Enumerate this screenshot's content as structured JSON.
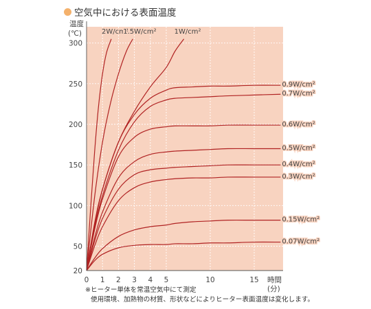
{
  "header": {
    "title": "空気中における表面温度",
    "bullet_color": "#f4b16c"
  },
  "notes": {
    "line1": "※ヒーター単体を常温空気中にて測定",
    "line2": "使用環境、加熱物の材質、形状などによりヒーター表面温度は変化します。"
  },
  "chart_data": {
    "type": "line",
    "title": "空気中における表面温度",
    "ylabel_line1": "温度",
    "ylabel_line2": "(℃)",
    "xlabel_line1": "時間",
    "xlabel_line2": "(分)",
    "xlim": [
      0,
      19
    ],
    "ylim": [
      20,
      320
    ],
    "x_ticks": [
      0,
      1,
      2,
      3,
      4,
      5,
      10,
      15
    ],
    "y_ticks": [
      20,
      50,
      100,
      150,
      200,
      250,
      300
    ],
    "plot_bg": "#f8d3c0",
    "line_color": "#b02222",
    "grid": true,
    "series": [
      {
        "name": "2W/cm²",
        "label_pos": "top",
        "x": [
          0,
          0.25,
          0.5,
          0.75,
          1.0,
          1.25,
          1.55
        ],
        "y": [
          20,
          95,
          165,
          222,
          262,
          288,
          305
        ]
      },
      {
        "name": "1.5W/cm²",
        "label_pos": "top",
        "x": [
          0,
          0.5,
          1.0,
          1.5,
          2.0,
          2.5,
          2.9
        ],
        "y": [
          20,
          110,
          178,
          226,
          262,
          290,
          305
        ]
      },
      {
        "name": "1W/cm²",
        "label_pos": "top",
        "x": [
          0,
          0.5,
          1.0,
          2.0,
          3.0,
          4.0,
          5.0,
          6.0,
          7.0
        ],
        "y": [
          20,
          75,
          120,
          178,
          216,
          246,
          270,
          290,
          305
        ]
      },
      {
        "name": "0.9W/cm²",
        "label_pos": "right",
        "x": [
          0,
          0.5,
          1.0,
          2.0,
          3.0,
          4.0,
          5.0,
          6.0,
          8.0,
          10.0,
          12.0,
          15.0,
          18.0
        ],
        "y": [
          20,
          78,
          120,
          178,
          212,
          232,
          242,
          245,
          246,
          247,
          247,
          248,
          248
        ]
      },
      {
        "name": "0.7W/cm²",
        "label_pos": "right",
        "x": [
          0,
          0.5,
          1.0,
          2.0,
          3.0,
          4.0,
          5.0,
          6.0,
          8.0,
          10.0,
          12.0,
          15.0,
          18.0
        ],
        "y": [
          20,
          72,
          112,
          168,
          203,
          222,
          230,
          232,
          233,
          234,
          235,
          236,
          237
        ]
      },
      {
        "name": "0.6W/cm²",
        "label_pos": "right",
        "x": [
          0,
          0.5,
          1.0,
          2.0,
          3.0,
          4.0,
          5.0,
          6.0,
          8.0,
          10.0,
          12.0,
          15.0,
          18.0
        ],
        "y": [
          20,
          70,
          108,
          160,
          184,
          194,
          197,
          198,
          198,
          198,
          199,
          199,
          199
        ]
      },
      {
        "name": "0.5W/cm²",
        "label_pos": "right",
        "x": [
          0,
          0.5,
          1.0,
          2.0,
          3.0,
          4.0,
          5.0,
          6.0,
          8.0,
          10.0,
          12.0,
          15.0,
          18.0
        ],
        "y": [
          20,
          60,
          92,
          134,
          154,
          163,
          166,
          167,
          168,
          169,
          170,
          170,
          170
        ]
      },
      {
        "name": "0.4W/cm²",
        "label_pos": "right",
        "x": [
          0,
          0.5,
          1.0,
          2.0,
          3.0,
          4.0,
          5.0,
          6.0,
          8.0,
          10.0,
          12.0,
          15.0,
          18.0
        ],
        "y": [
          20,
          56,
          84,
          120,
          138,
          144,
          146,
          147,
          148,
          149,
          150,
          150,
          150
        ]
      },
      {
        "name": "0.3W/cm²",
        "label_pos": "right",
        "x": [
          0,
          0.5,
          1.0,
          2.0,
          3.0,
          4.0,
          5.0,
          6.0,
          8.0,
          10.0,
          12.0,
          15.0,
          18.0
        ],
        "y": [
          20,
          50,
          74,
          106,
          122,
          129,
          132,
          133,
          134,
          134,
          135,
          135,
          135
        ]
      },
      {
        "name": "0.15W/cm²",
        "label_pos": "right",
        "x": [
          0,
          0.5,
          1.0,
          2.0,
          3.0,
          4.0,
          5.0,
          6.0,
          8.0,
          10.0,
          12.0,
          15.0,
          18.0
        ],
        "y": [
          20,
          35,
          47,
          62,
          70,
          74,
          76,
          78,
          80,
          81,
          82,
          82,
          82
        ]
      },
      {
        "name": "0.07W/cm²",
        "label_pos": "right",
        "x": [
          0,
          0.5,
          1.0,
          2.0,
          3.0,
          4.0,
          5.0,
          6.0,
          8.0,
          10.0,
          12.0,
          15.0,
          18.0
        ],
        "y": [
          20,
          32,
          40,
          48,
          51,
          52,
          52,
          53,
          53,
          54,
          54,
          55,
          55
        ]
      }
    ]
  }
}
